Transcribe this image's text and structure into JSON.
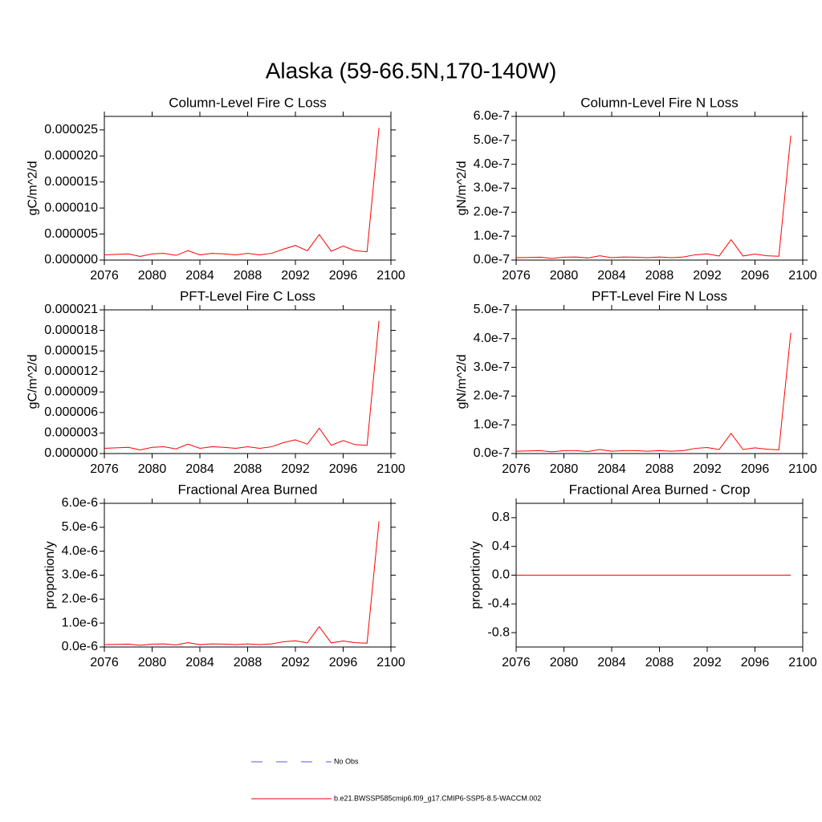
{
  "title": "Alaska (59-66.5N,170-140W)",
  "legend": [
    {
      "name": "No Obs",
      "color": "#5a5ad8",
      "dash": true
    },
    {
      "name": "b.e21.BWSSP585cmip6.f09_g17.CMIP6-SSP5-8.5-WACCM.002",
      "color": "#ff0000",
      "dash": false
    }
  ],
  "chart_data": [
    {
      "type": "line",
      "title": "Column-Level Fire C Loss",
      "ylabel": "gC/m^2/d",
      "x": [
        2076,
        2077,
        2078,
        2079,
        2080,
        2081,
        2082,
        2083,
        2084,
        2085,
        2086,
        2087,
        2088,
        2089,
        2090,
        2091,
        2092,
        2093,
        2094,
        2095,
        2096,
        2097,
        2098,
        2099
      ],
      "xlim": [
        2076,
        2100
      ],
      "xticks": [
        2076,
        2080,
        2084,
        2088,
        2092,
        2096,
        2100
      ],
      "ylim": [
        0,
        2.76e-05
      ],
      "yticks": [
        {
          "value": 0,
          "label": "0.000000"
        },
        {
          "value": 5e-06,
          "label": "0.000005"
        },
        {
          "value": 1e-05,
          "label": "0.000010"
        },
        {
          "value": 1.5e-05,
          "label": "0.000015"
        },
        {
          "value": 2e-05,
          "label": "0.000020"
        },
        {
          "value": 2.5e-05,
          "label": "0.000025"
        }
      ],
      "series": [
        {
          "color": "#ff0000",
          "values": [
            1e-06,
            1.1e-06,
            1.2e-06,
            7e-07,
            1.2e-06,
            1.3e-06,
            9e-07,
            1.8e-06,
            1e-06,
            1.3e-06,
            1.2e-06,
            1e-06,
            1.3e-06,
            1e-06,
            1.3e-06,
            2.1e-06,
            2.8e-06,
            1.8e-06,
            4.9e-06,
            1.7e-06,
            2.7e-06,
            1.8e-06,
            1.6e-06,
            2.54e-05
          ]
        }
      ]
    },
    {
      "type": "line",
      "title": "Column-Level Fire N Loss",
      "ylabel": "gN/m^2/d",
      "x": [
        2076,
        2077,
        2078,
        2079,
        2080,
        2081,
        2082,
        2083,
        2084,
        2085,
        2086,
        2087,
        2088,
        2089,
        2090,
        2091,
        2092,
        2093,
        2094,
        2095,
        2096,
        2097,
        2098,
        2099
      ],
      "xlim": [
        2076,
        2100
      ],
      "xticks": [
        2076,
        2080,
        2084,
        2088,
        2092,
        2096,
        2100
      ],
      "ylim": [
        0,
        6e-07
      ],
      "yticks": [
        {
          "value": 0,
          "label": "0.0e-7"
        },
        {
          "value": 1e-07,
          "label": "1.0e-7"
        },
        {
          "value": 2e-07,
          "label": "2.0e-7"
        },
        {
          "value": 3e-07,
          "label": "3.0e-7"
        },
        {
          "value": 4e-07,
          "label": "4.0e-7"
        },
        {
          "value": 5e-07,
          "label": "5.0e-7"
        },
        {
          "value": 6e-07,
          "label": "6.0e-7"
        }
      ],
      "series": [
        {
          "color": "#ff0000",
          "values": [
            1e-08,
            1.1e-08,
            1.2e-08,
            7e-09,
            1.2e-08,
            1.3e-08,
            9e-09,
            1.8e-08,
            1e-08,
            1.3e-08,
            1.2e-08,
            1e-08,
            1.3e-08,
            1e-08,
            1.3e-08,
            2.2e-08,
            2.6e-08,
            1.7e-08,
            8.5e-08,
            1.7e-08,
            2.5e-08,
            1.8e-08,
            1.6e-08,
            5.2e-07
          ]
        }
      ]
    },
    {
      "type": "line",
      "title": "PFT-Level Fire C Loss",
      "ylabel": "gC/m^2/d",
      "x": [
        2076,
        2077,
        2078,
        2079,
        2080,
        2081,
        2082,
        2083,
        2084,
        2085,
        2086,
        2087,
        2088,
        2089,
        2090,
        2091,
        2092,
        2093,
        2094,
        2095,
        2096,
        2097,
        2098,
        2099
      ],
      "xlim": [
        2076,
        2100
      ],
      "xticks": [
        2076,
        2080,
        2084,
        2088,
        2092,
        2096,
        2100
      ],
      "ylim": [
        0,
        2.1e-05
      ],
      "yticks": [
        {
          "value": 0,
          "label": "0.000000"
        },
        {
          "value": 3e-06,
          "label": "0.000003"
        },
        {
          "value": 6e-06,
          "label": "0.000006"
        },
        {
          "value": 9e-06,
          "label": "0.000009"
        },
        {
          "value": 1.2e-05,
          "label": "0.000012"
        },
        {
          "value": 1.5e-05,
          "label": "0.000015"
        },
        {
          "value": 1.8e-05,
          "label": "0.000018"
        },
        {
          "value": 2.1e-05,
          "label": "0.000021"
        }
      ],
      "series": [
        {
          "color": "#ff0000",
          "values": [
            7.6e-07,
            8.4e-07,
            9.1e-07,
            5.3e-07,
            9.1e-07,
            9.9e-07,
            6.8e-07,
            1.37e-06,
            7.6e-07,
            9.9e-07,
            9.1e-07,
            7.6e-07,
            9.9e-07,
            7.6e-07,
            9.9e-07,
            1.6e-06,
            2e-06,
            1.37e-06,
            3.7e-06,
            1.2e-06,
            1.9e-06,
            1.3e-06,
            1.2e-06,
            1.94e-05
          ]
        }
      ]
    },
    {
      "type": "line",
      "title": "PFT-Level Fire N Loss",
      "ylabel": "gN/m^2/d",
      "x": [
        2076,
        2077,
        2078,
        2079,
        2080,
        2081,
        2082,
        2083,
        2084,
        2085,
        2086,
        2087,
        2088,
        2089,
        2090,
        2091,
        2092,
        2093,
        2094,
        2095,
        2096,
        2097,
        2098,
        2099
      ],
      "xlim": [
        2076,
        2100
      ],
      "xticks": [
        2076,
        2080,
        2084,
        2088,
        2092,
        2096,
        2100
      ],
      "ylim": [
        0,
        5e-07
      ],
      "yticks": [
        {
          "value": 0,
          "label": "0.0e-7"
        },
        {
          "value": 1e-07,
          "label": "1.0e-7"
        },
        {
          "value": 2e-07,
          "label": "2.0e-7"
        },
        {
          "value": 3e-07,
          "label": "3.0e-7"
        },
        {
          "value": 4e-07,
          "label": "4.0e-7"
        },
        {
          "value": 5e-07,
          "label": "5.0e-7"
        }
      ],
      "series": [
        {
          "color": "#ff0000",
          "values": [
            8e-09,
            9e-09,
            1e-08,
            6e-09,
            1e-08,
            1e-08,
            7e-09,
            1.4e-08,
            8e-09,
            1e-08,
            1e-08,
            8e-09,
            1e-08,
            8e-09,
            1e-08,
            1.8e-08,
            2.1e-08,
            1.4e-08,
            7e-08,
            1.4e-08,
            2e-08,
            1.5e-08,
            1.3e-08,
            4.2e-07
          ]
        }
      ]
    },
    {
      "type": "line",
      "title": "Fractional Area Burned",
      "ylabel": "proportion/y",
      "x": [
        2076,
        2077,
        2078,
        2079,
        2080,
        2081,
        2082,
        2083,
        2084,
        2085,
        2086,
        2087,
        2088,
        2089,
        2090,
        2091,
        2092,
        2093,
        2094,
        2095,
        2096,
        2097,
        2098,
        2099
      ],
      "xlim": [
        2076,
        2100
      ],
      "xticks": [
        2076,
        2080,
        2084,
        2088,
        2092,
        2096,
        2100
      ],
      "ylim": [
        0,
        6e-06
      ],
      "yticks": [
        {
          "value": 0,
          "label": "0.0e-6"
        },
        {
          "value": 1e-06,
          "label": "1.0e-6"
        },
        {
          "value": 2e-06,
          "label": "2.0e-6"
        },
        {
          "value": 3e-06,
          "label": "3.0e-6"
        },
        {
          "value": 4e-06,
          "label": "4.0e-6"
        },
        {
          "value": 5e-06,
          "label": "5.0e-6"
        },
        {
          "value": 6e-06,
          "label": "6.0e-6"
        }
      ],
      "series": [
        {
          "color": "#ff0000",
          "values": [
            1e-07,
            1.1e-07,
            1.2e-07,
            7e-08,
            1.2e-07,
            1.3e-07,
            9e-08,
            1.8e-07,
            1e-07,
            1.3e-07,
            1.2e-07,
            1e-07,
            1.3e-07,
            1e-07,
            1.3e-07,
            2.2e-07,
            2.6e-07,
            1.7e-07,
            8.5e-07,
            1.7e-07,
            2.5e-07,
            1.8e-07,
            1.6e-07,
            5.25e-06
          ]
        }
      ]
    },
    {
      "type": "line",
      "title": "Fractional Area Burned - Crop",
      "ylabel": "proportion/y",
      "x": [
        2076,
        2077,
        2078,
        2079,
        2080,
        2081,
        2082,
        2083,
        2084,
        2085,
        2086,
        2087,
        2088,
        2089,
        2090,
        2091,
        2092,
        2093,
        2094,
        2095,
        2096,
        2097,
        2098,
        2099
      ],
      "xlim": [
        2076,
        2100
      ],
      "xticks": [
        2076,
        2080,
        2084,
        2088,
        2092,
        2096,
        2100
      ],
      "ylim": [
        -1,
        1
      ],
      "yticks": [
        -0.8,
        -0.4,
        {
          "value": 0,
          "label": "0.0"
        },
        0.4,
        0.8
      ],
      "series": [
        {
          "color": "#ff0000",
          "values": [
            0,
            0,
            0,
            0,
            0,
            0,
            0,
            0,
            0,
            0,
            0,
            0,
            0,
            0,
            0,
            0,
            0,
            0,
            0,
            0,
            0,
            0,
            0,
            0
          ]
        }
      ]
    }
  ]
}
